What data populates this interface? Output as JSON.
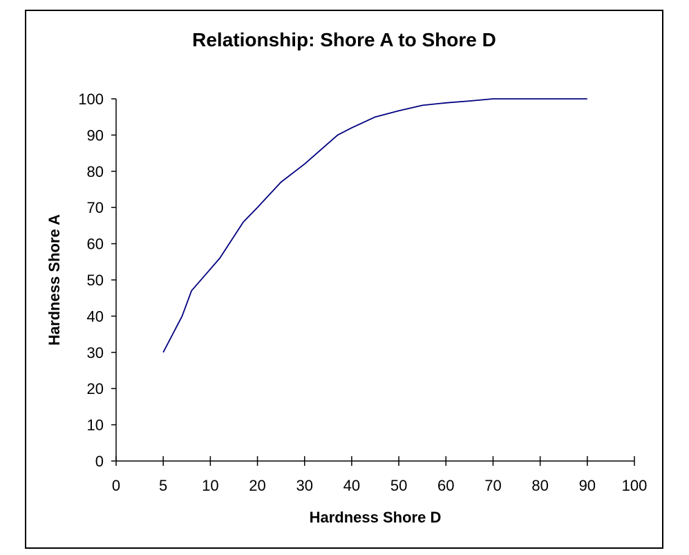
{
  "chart_data": {
    "type": "line",
    "title": "Relationship: Shore A to Shore D",
    "xlabel": "Hardness Shore D",
    "ylabel": "Hardness Shore A",
    "x_ticks": [
      "0",
      "5",
      "10",
      "20",
      "30",
      "40",
      "50",
      "60",
      "70",
      "80",
      "90",
      "100"
    ],
    "y_ticks": [
      "0",
      "10",
      "20",
      "30",
      "40",
      "50",
      "60",
      "70",
      "80",
      "90",
      "100"
    ],
    "ylim": [
      0,
      100
    ],
    "grid": false,
    "legend": "none",
    "line_color": "#000080",
    "series": [
      {
        "x": [
          5,
          7,
          8,
          10,
          12,
          15,
          17,
          20,
          25,
          30,
          37,
          40,
          45,
          50,
          55,
          60,
          65,
          70,
          80,
          90
        ],
        "y": [
          30,
          40,
          47,
          53,
          56,
          62,
          66,
          70,
          77,
          82,
          90,
          92,
          95,
          96.7,
          98.2,
          98.9,
          99.4,
          100,
          100,
          100
        ]
      }
    ]
  }
}
